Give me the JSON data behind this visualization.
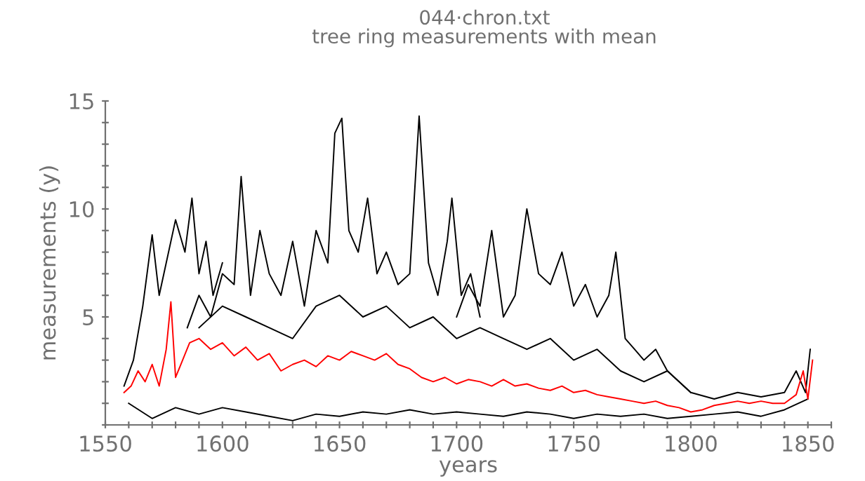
{
  "chart_data": {
    "type": "line",
    "title": "044·chron.txt\ntree ring measurements with mean",
    "xlabel": "years",
    "ylabel": "measurements (y)",
    "xlim": [
      1550,
      1860
    ],
    "ylim": [
      0,
      15
    ],
    "xticks": [
      1550,
      {
        "value": 1560,
        "label": null
      },
      {
        "value": 1570,
        "label": null
      },
      {
        "value": 1580,
        "label": null
      },
      {
        "value": 1590,
        "label": null
      },
      1600,
      {
        "value": 1610,
        "label": null
      },
      {
        "value": 1620,
        "label": null
      },
      {
        "value": 1630,
        "label": null
      },
      {
        "value": 1640,
        "label": null
      },
      1650,
      {
        "value": 1660,
        "label": null
      },
      {
        "value": 1670,
        "label": null
      },
      {
        "value": 1680,
        "label": null
      },
      {
        "value": 1690,
        "label": null
      },
      1700,
      {
        "value": 1710,
        "label": null
      },
      {
        "value": 1720,
        "label": null
      },
      {
        "value": 1730,
        "label": null
      },
      {
        "value": 1740,
        "label": null
      },
      1750,
      {
        "value": 1760,
        "label": null
      },
      {
        "value": 1770,
        "label": null
      },
      {
        "value": 1780,
        "label": null
      },
      {
        "value": 1790,
        "label": null
      },
      1800,
      {
        "value": 1810,
        "label": null
      },
      {
        "value": 1820,
        "label": null
      },
      {
        "value": 1830,
        "label": null
      },
      {
        "value": 1840,
        "label": null
      },
      1850,
      {
        "value": 1860,
        "label": null
      }
    ],
    "yticks": [
      {
        "value": 0,
        "label": null
      },
      {
        "value": 1,
        "label": null
      },
      {
        "value": 2,
        "label": null
      },
      {
        "value": 3,
        "label": null
      },
      {
        "value": 4,
        "label": null
      },
      5,
      {
        "value": 6,
        "label": null
      },
      {
        "value": 7,
        "label": null
      },
      {
        "value": 8,
        "label": null
      },
      {
        "value": 9,
        "label": null
      },
      10,
      {
        "value": 11,
        "label": null
      },
      {
        "value": 12,
        "label": null
      },
      {
        "value": 13,
        "label": null
      },
      {
        "value": 14,
        "label": null
      },
      15
    ],
    "grid": false,
    "legend": false,
    "marker": "none",
    "line_style": "solid",
    "series": [
      {
        "color": "#000000",
        "x": [
          1558,
          1562,
          1566,
          1570,
          1573,
          1576,
          1580,
          1584,
          1587,
          1590,
          1593,
          1596,
          1600
        ],
        "values": [
          1.8,
          3.0,
          5.5,
          8.8,
          6.0,
          7.5,
          9.5,
          8.0,
          10.5,
          7.0,
          8.5,
          6.0,
          7.5
        ]
      },
      {
        "color": "#000000",
        "x": [
          1585,
          1590,
          1595,
          1600,
          1605,
          1608,
          1612,
          1616,
          1620,
          1625,
          1630,
          1635,
          1640,
          1645,
          1648,
          1651,
          1654,
          1658,
          1662,
          1666,
          1670,
          1675,
          1680,
          1684,
          1688,
          1692,
          1696,
          1698,
          1702,
          1706,
          1710
        ],
        "values": [
          4.5,
          6.0,
          5.0,
          7.0,
          6.5,
          11.5,
          6.0,
          9.0,
          7.0,
          6.0,
          8.5,
          5.5,
          9.0,
          7.5,
          13.5,
          14.2,
          9.0,
          8.0,
          10.5,
          7.0,
          8.0,
          6.5,
          7.0,
          14.3,
          7.5,
          6.0,
          8.5,
          10.5,
          6.0,
          7.0,
          5.0
        ]
      },
      {
        "color": "#000000",
        "x": [
          1700,
          1705,
          1710,
          1715,
          1720,
          1725,
          1730,
          1735,
          1740,
          1745,
          1750,
          1755,
          1760,
          1765,
          1768,
          1772,
          1776,
          1780,
          1785,
          1790,
          1795,
          1800
        ],
        "values": [
          5.0,
          6.5,
          5.5,
          9.0,
          5.0,
          6.0,
          10.0,
          7.0,
          6.5,
          8.0,
          5.5,
          6.5,
          5.0,
          6.0,
          8.0,
          4.0,
          3.5,
          3.0,
          3.5,
          2.5,
          2.0,
          1.5
        ]
      },
      {
        "color": "#000000",
        "x": [
          1560,
          1570,
          1580,
          1590,
          1600,
          1610,
          1620,
          1630,
          1640,
          1650,
          1660,
          1670,
          1680,
          1690,
          1700,
          1710,
          1720,
          1730,
          1740,
          1750,
          1760,
          1770,
          1780,
          1790,
          1800,
          1810,
          1820,
          1830,
          1840,
          1850
        ],
        "values": [
          1.0,
          0.3,
          0.8,
          0.5,
          0.8,
          0.6,
          0.4,
          0.2,
          0.5,
          0.4,
          0.6,
          0.5,
          0.7,
          0.5,
          0.6,
          0.5,
          0.4,
          0.6,
          0.5,
          0.3,
          0.5,
          0.4,
          0.5,
          0.3,
          0.4,
          0.5,
          0.6,
          0.4,
          0.7,
          1.2
        ]
      },
      {
        "color": "#000000",
        "x": [
          1590,
          1600,
          1610,
          1620,
          1630,
          1640,
          1650,
          1660,
          1670,
          1680,
          1690,
          1700,
          1710,
          1720,
          1730,
          1740,
          1750,
          1760,
          1770,
          1780,
          1790,
          1800,
          1810,
          1820,
          1830,
          1840,
          1845,
          1849,
          1851
        ],
        "values": [
          4.5,
          5.5,
          5.0,
          4.5,
          4.0,
          5.5,
          6.0,
          5.0,
          5.5,
          4.5,
          5.0,
          4.0,
          4.5,
          4.0,
          3.5,
          4.0,
          3.0,
          3.5,
          2.5,
          2.0,
          2.5,
          1.5,
          1.2,
          1.5,
          1.3,
          1.5,
          2.5,
          1.5,
          3.5
        ]
      },
      {
        "color": "#ff0000",
        "x": [
          1558,
          1561,
          1564,
          1567,
          1570,
          1573,
          1576,
          1578,
          1580,
          1583,
          1586,
          1590,
          1595,
          1600,
          1605,
          1610,
          1615,
          1620,
          1625,
          1630,
          1635,
          1640,
          1645,
          1650,
          1655,
          1660,
          1665,
          1670,
          1675,
          1680,
          1685,
          1690,
          1695,
          1700,
          1705,
          1710,
          1715,
          1720,
          1725,
          1730,
          1735,
          1740,
          1745,
          1750,
          1755,
          1760,
          1765,
          1770,
          1775,
          1780,
          1785,
          1790,
          1795,
          1800,
          1805,
          1810,
          1815,
          1820,
          1825,
          1830,
          1835,
          1840,
          1845,
          1848,
          1850,
          1852
        ],
        "values": [
          1.5,
          1.8,
          2.5,
          2.0,
          2.8,
          1.8,
          3.5,
          5.7,
          2.2,
          3.0,
          3.8,
          4.0,
          3.5,
          3.8,
          3.2,
          3.6,
          3.0,
          3.3,
          2.5,
          2.8,
          3.0,
          2.7,
          3.2,
          3.0,
          3.4,
          3.2,
          3.0,
          3.3,
          2.8,
          2.6,
          2.2,
          2.0,
          2.2,
          1.9,
          2.1,
          2.0,
          1.8,
          2.1,
          1.8,
          1.9,
          1.7,
          1.6,
          1.8,
          1.5,
          1.6,
          1.4,
          1.3,
          1.2,
          1.1,
          1.0,
          1.1,
          0.9,
          0.8,
          0.6,
          0.7,
          0.9,
          1.0,
          1.1,
          1.0,
          1.1,
          1.0,
          1.0,
          1.4,
          2.5,
          1.2,
          3.0
        ]
      }
    ]
  }
}
